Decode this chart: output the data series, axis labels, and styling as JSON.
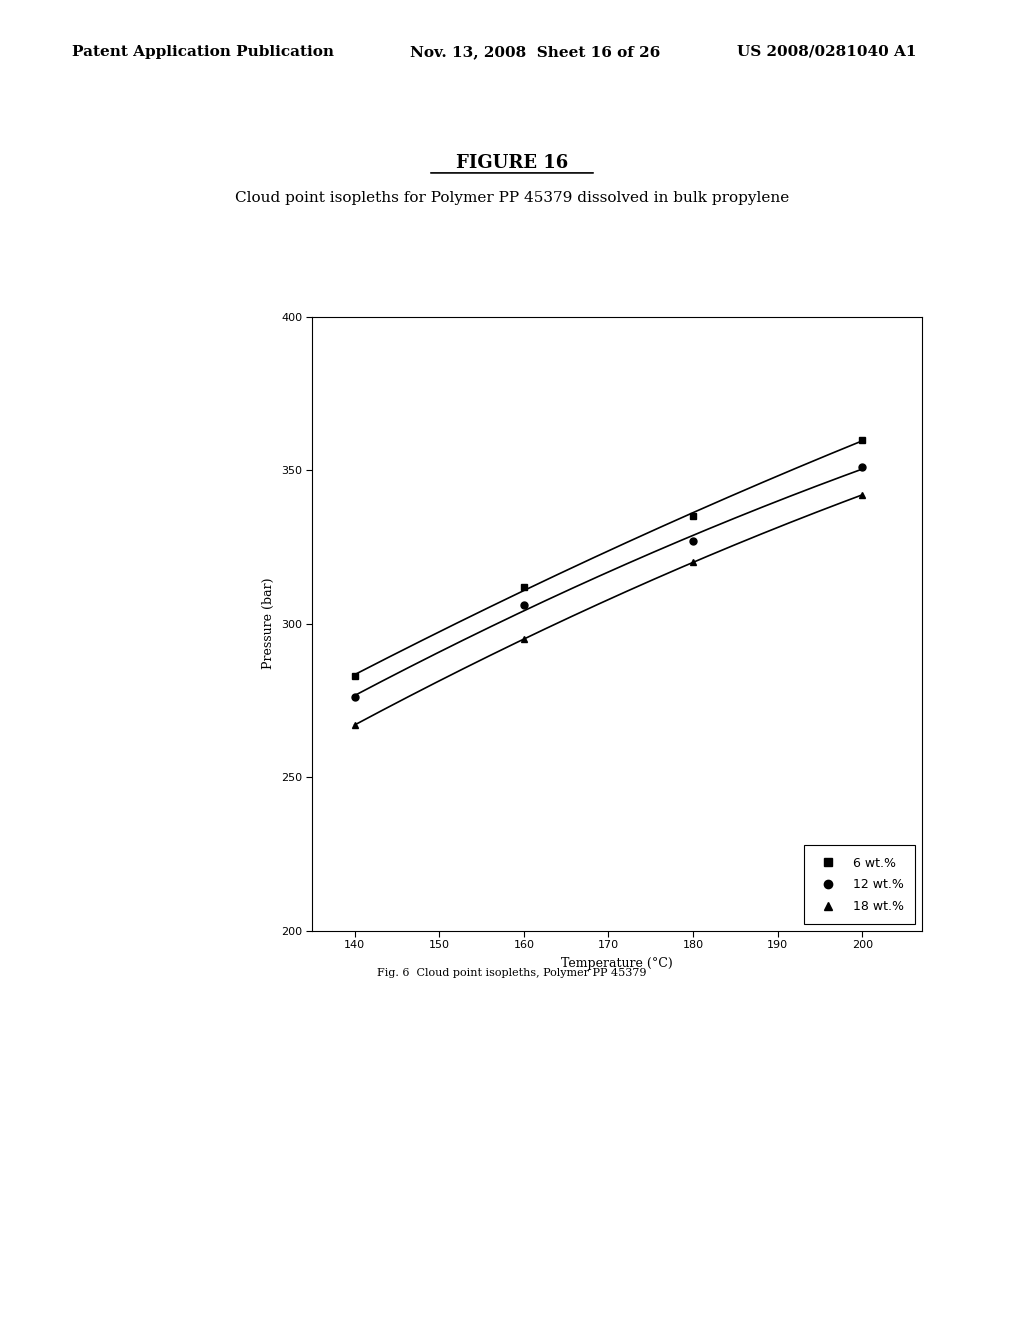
{
  "title": "FIGURE 16",
  "subtitle": "Cloud point isopleths for Polymer PP 45379 dissolved in bulk propylene",
  "fig_caption": "Fig. 6  Cloud point isopleths, Polymer PP 45379",
  "xlabel": "Temperature (°C)",
  "ylabel": "Pressure (bar)",
  "header_left": "Patent Application Publication",
  "header_mid": "Nov. 13, 2008  Sheet 16 of 26",
  "header_right": "US 2008/0281040 A1",
  "xlim": [
    135,
    207
  ],
  "ylim": [
    200,
    400
  ],
  "xticks": [
    140,
    150,
    160,
    170,
    180,
    190,
    200
  ],
  "yticks": [
    200,
    250,
    300,
    350,
    400
  ],
  "series": [
    {
      "label": "6 wt.%",
      "marker": "s",
      "x": [
        140,
        160,
        180,
        200
      ],
      "y": [
        283,
        312,
        335,
        360
      ]
    },
    {
      "label": "12 wt.%",
      "marker": "o",
      "x": [
        140,
        160,
        180,
        200
      ],
      "y": [
        276,
        306,
        327,
        351
      ]
    },
    {
      "label": "18 wt.%",
      "marker": "^",
      "x": [
        140,
        160,
        180,
        200
      ],
      "y": [
        267,
        295,
        320,
        342
      ]
    }
  ],
  "background_color": "#ffffff",
  "line_color": "#000000",
  "legend_box": true
}
